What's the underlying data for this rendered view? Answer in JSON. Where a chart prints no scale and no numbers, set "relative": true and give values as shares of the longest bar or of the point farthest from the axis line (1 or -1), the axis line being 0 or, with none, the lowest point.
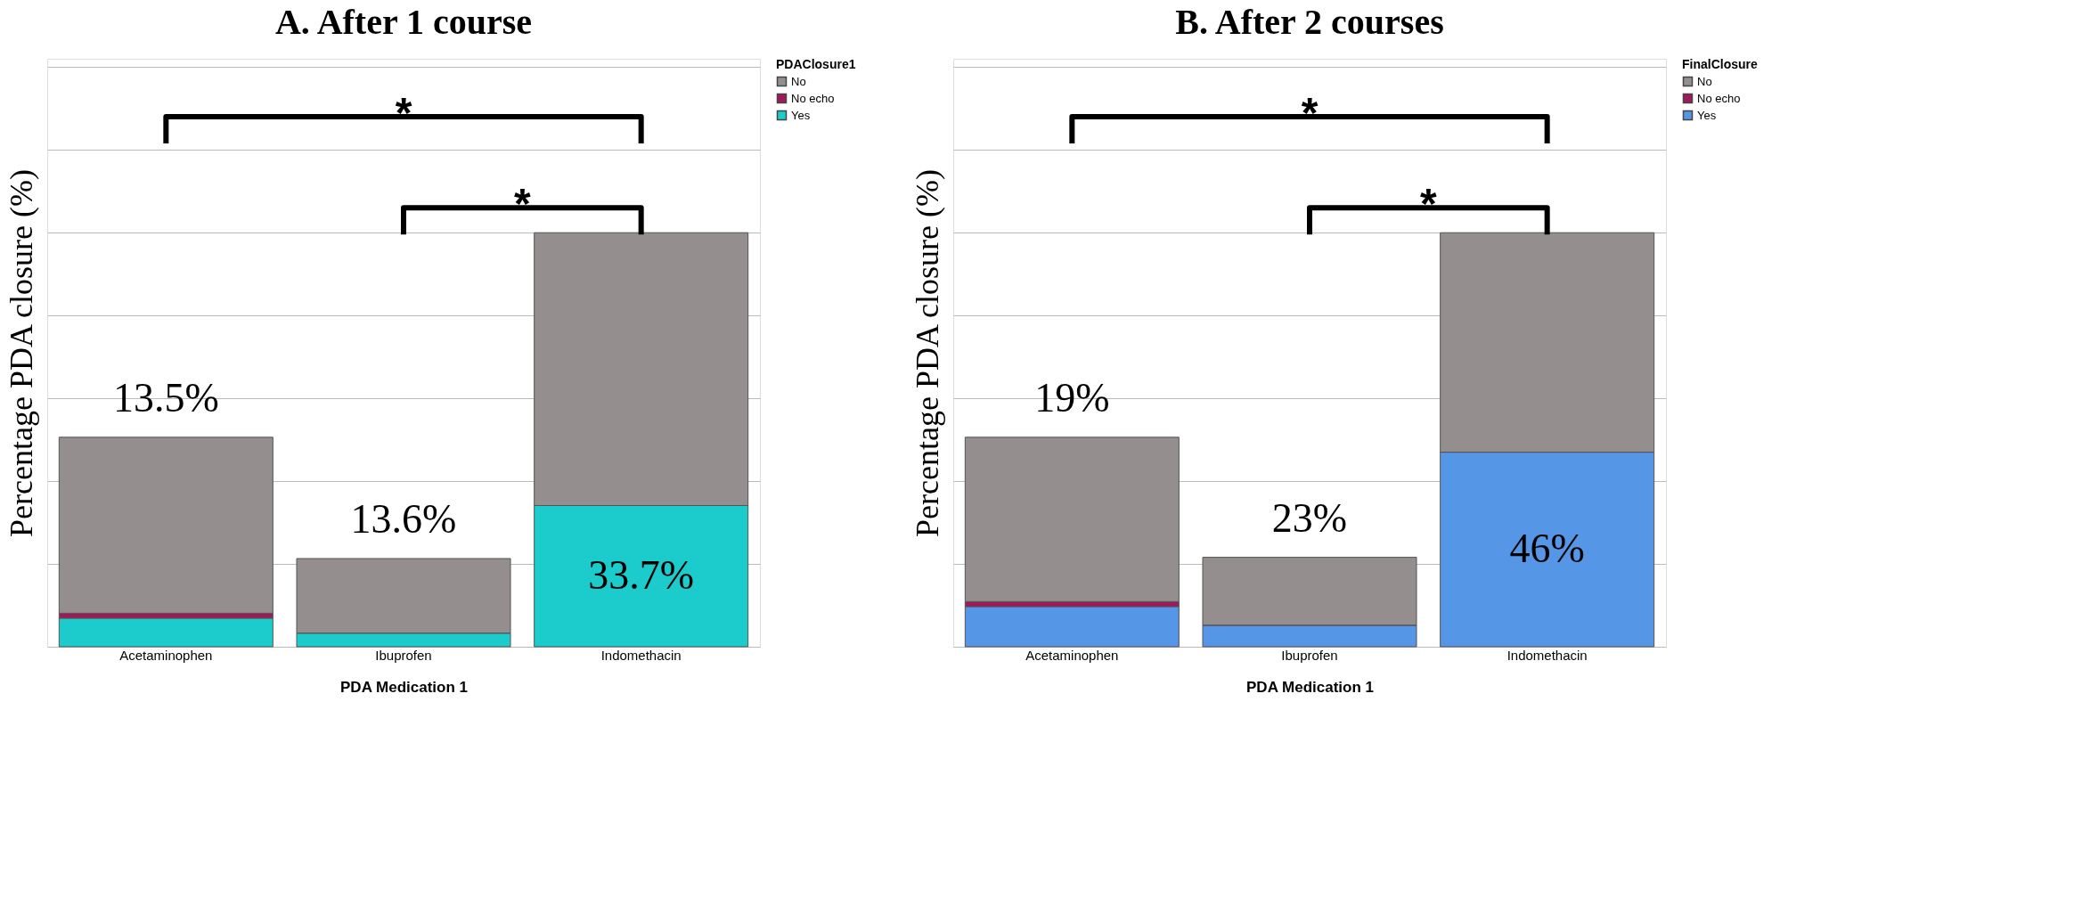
{
  "chart_data": [
    {
      "type": "bar",
      "title": "A. After 1 course",
      "xlabel": "PDA Medication 1",
      "ylabel": "Percentage PDA closure (%)",
      "legend_title": "PDAClosure1",
      "categories": [
        "Acetaminophen",
        "Ibuprofen",
        "Indomethacin"
      ],
      "stacked": true,
      "relative": true,
      "grid": "y",
      "legend": "top right",
      "tick_labels": "x",
      "series": [
        {
          "name": "Yes",
          "color": "#1ccccc",
          "values": [
            0.069,
            0.033,
            0.341
          ]
        },
        {
          "name": "No echo",
          "color": "#a0195a",
          "values": [
            0.012,
            0,
            0
          ]
        },
        {
          "name": "No",
          "color": "#948f8e",
          "values": [
            0.425,
            0.18,
            0.659
          ]
        }
      ],
      "annotations": [
        "13.5%",
        "13.6%",
        "33.7%",
        "*",
        "*"
      ]
    },
    {
      "type": "bar",
      "title": "B. After 2 courses",
      "xlabel": "PDA Medication 1",
      "ylabel": "Percentage PDA closure (%)",
      "legend_title": "FinalClosure",
      "categories": [
        "Acetaminophen",
        "Ibuprofen",
        "Indomethacin"
      ],
      "stacked": true,
      "relative": true,
      "grid": "y",
      "legend": "top right",
      "tick_labels": "x",
      "series": [
        {
          "name": "Yes",
          "color": "#5596e6",
          "values": [
            0.097,
            0.052,
            0.47
          ]
        },
        {
          "name": "No echo",
          "color": "#a0195a",
          "values": [
            0.012,
            0,
            0
          ]
        },
        {
          "name": "No",
          "color": "#948f8e",
          "values": [
            0.397,
            0.164,
            0.53
          ]
        }
      ],
      "annotations": [
        "19%",
        "23%",
        "46%",
        "*",
        "*"
      ]
    }
  ]
}
